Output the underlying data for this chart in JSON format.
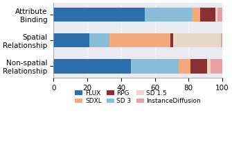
{
  "categories": [
    "Attribute\nBinding",
    "Spatial\nRelationship",
    "Non-spatial\nRelationship"
  ],
  "models": [
    "FLUX",
    "SD 3",
    "SDXL",
    "RPG",
    "SD 1.5",
    "InstanceDiffusion"
  ],
  "values": {
    "Attribute\nBinding": [
      54,
      28,
      5,
      9,
      1,
      3
    ],
    "Spatial\nRelationship": [
      21,
      12,
      36,
      2,
      28,
      1
    ],
    "Non-spatial\nRelationship": [
      46,
      28,
      7,
      10,
      2,
      7
    ]
  },
  "colors": {
    "FLUX": "#2b6fad",
    "SD 3": "#88bdd8",
    "SDXL": "#f4a87c",
    "RPG": "#8b3030",
    "SD 1.5": "#e8d8c8",
    "InstanceDiffusion": "#e8a0a0"
  },
  "xlim": [
    0,
    100
  ],
  "figsize": [
    3.35,
    2.06
  ],
  "dpi": 100,
  "bar_height": 0.55,
  "bg_color": "#eaeaf2",
  "legend_order": [
    "FLUX",
    "SDXL",
    "RPG",
    "SD 3",
    "SD 1.5",
    "InstanceDiffusion"
  ]
}
